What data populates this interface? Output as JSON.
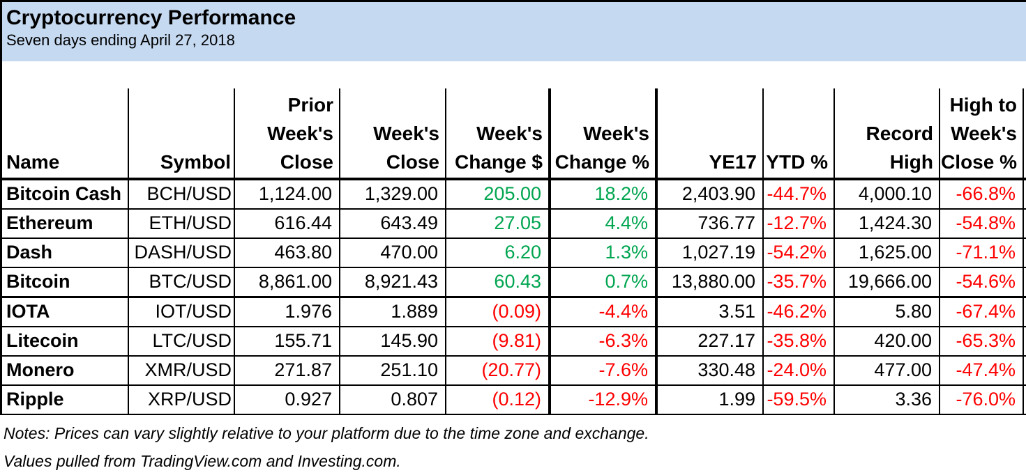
{
  "banner": {
    "title": "Cryptocurrency Performance",
    "subtitle": "Seven days ending April 27, 2018"
  },
  "table": {
    "headers": [
      {
        "label": "Name"
      },
      {
        "label": "Symbol"
      },
      {
        "label": "Prior\nWeek's\nClose"
      },
      {
        "label": "Week's\nClose"
      },
      {
        "label": "Week's\nChange $"
      },
      {
        "label": "Week's\nChange %"
      },
      {
        "label": "YE17"
      },
      {
        "label": "YTD %"
      },
      {
        "label": "Record\nHigh"
      },
      {
        "label": "High to\nWeek's\nClose %"
      }
    ],
    "rows": [
      {
        "thick_bottom": false,
        "cells": [
          {
            "v": "Bitcoin Cash"
          },
          {
            "v": "BCH/USD"
          },
          {
            "v": "1,124.00"
          },
          {
            "v": "1,329.00"
          },
          {
            "v": "205.00",
            "cls": "pos"
          },
          {
            "v": "18.2%",
            "cls": "pos"
          },
          {
            "v": "2,403.90"
          },
          {
            "v": "-44.7%",
            "cls": "neg"
          },
          {
            "v": "4,000.10"
          },
          {
            "v": "-66.8%",
            "cls": "neg"
          }
        ]
      },
      {
        "thick_bottom": false,
        "cells": [
          {
            "v": "Ethereum"
          },
          {
            "v": "ETH/USD"
          },
          {
            "v": "616.44"
          },
          {
            "v": "643.49"
          },
          {
            "v": "27.05",
            "cls": "pos"
          },
          {
            "v": "4.4%",
            "cls": "pos"
          },
          {
            "v": "736.77"
          },
          {
            "v": "-12.7%",
            "cls": "neg"
          },
          {
            "v": "1,424.30"
          },
          {
            "v": "-54.8%",
            "cls": "neg"
          }
        ]
      },
      {
        "thick_bottom": false,
        "cells": [
          {
            "v": "Dash"
          },
          {
            "v": "DASH/USD"
          },
          {
            "v": "463.80"
          },
          {
            "v": "470.00"
          },
          {
            "v": "6.20",
            "cls": "pos"
          },
          {
            "v": "1.3%",
            "cls": "pos"
          },
          {
            "v": "1,027.19"
          },
          {
            "v": "-54.2%",
            "cls": "neg"
          },
          {
            "v": "1,625.00"
          },
          {
            "v": "-71.1%",
            "cls": "neg"
          }
        ]
      },
      {
        "thick_bottom": true,
        "cells": [
          {
            "v": "Bitcoin"
          },
          {
            "v": "BTC/USD"
          },
          {
            "v": "8,861.00"
          },
          {
            "v": "8,921.43"
          },
          {
            "v": "60.43",
            "cls": "pos"
          },
          {
            "v": "0.7%",
            "cls": "pos"
          },
          {
            "v": "13,880.00"
          },
          {
            "v": "-35.7%",
            "cls": "neg"
          },
          {
            "v": "19,666.00"
          },
          {
            "v": "-54.6%",
            "cls": "neg"
          }
        ]
      },
      {
        "thick_bottom": false,
        "cells": [
          {
            "v": "IOTA"
          },
          {
            "v": "IOT/USD"
          },
          {
            "v": "1.976"
          },
          {
            "v": "1.889"
          },
          {
            "v": "(0.09)",
            "cls": "neg"
          },
          {
            "v": "-4.4%",
            "cls": "neg"
          },
          {
            "v": "3.51"
          },
          {
            "v": "-46.2%",
            "cls": "neg"
          },
          {
            "v": "5.80"
          },
          {
            "v": "-67.4%",
            "cls": "neg"
          }
        ]
      },
      {
        "thick_bottom": false,
        "cells": [
          {
            "v": "Litecoin"
          },
          {
            "v": "LTC/USD"
          },
          {
            "v": "155.71"
          },
          {
            "v": "145.90"
          },
          {
            "v": "(9.81)",
            "cls": "neg"
          },
          {
            "v": "-6.3%",
            "cls": "neg"
          },
          {
            "v": "227.17"
          },
          {
            "v": "-35.8%",
            "cls": "neg"
          },
          {
            "v": "420.00"
          },
          {
            "v": "-65.3%",
            "cls": "neg"
          }
        ]
      },
      {
        "thick_bottom": false,
        "cells": [
          {
            "v": "Monero"
          },
          {
            "v": "XMR/USD"
          },
          {
            "v": "271.87"
          },
          {
            "v": "251.10"
          },
          {
            "v": "(20.77)",
            "cls": "neg"
          },
          {
            "v": "-7.6%",
            "cls": "neg"
          },
          {
            "v": "330.48"
          },
          {
            "v": "-24.0%",
            "cls": "neg"
          },
          {
            "v": "477.00"
          },
          {
            "v": "-47.4%",
            "cls": "neg"
          }
        ]
      },
      {
        "thick_bottom": false,
        "cells": [
          {
            "v": "Ripple"
          },
          {
            "v": "XRP/USD"
          },
          {
            "v": "0.927"
          },
          {
            "v": "0.807"
          },
          {
            "v": "(0.12)",
            "cls": "neg"
          },
          {
            "v": "-12.9%",
            "cls": "neg"
          },
          {
            "v": "1.99"
          },
          {
            "v": "-59.5%",
            "cls": "neg"
          },
          {
            "v": "3.36"
          },
          {
            "v": "-76.0%",
            "cls": "neg"
          }
        ]
      }
    ]
  },
  "notes": {
    "line1": "Notes: Prices can vary slightly relative to your platform due to the time zone and exchange.",
    "line2": "Values pulled from TradingView.com and Investing.com."
  },
  "colors": {
    "positive": "#00A550",
    "negative": "#FF0000",
    "banner_bg": "#C5D9F1",
    "border": "#000000"
  },
  "chart_data": {
    "type": "table",
    "title": "Cryptocurrency Performance",
    "subtitle": "Seven days ending April 27, 2018",
    "columns": [
      "Name",
      "Symbol",
      "Prior Week's Close",
      "Week's Close",
      "Week's Change $",
      "Week's Change %",
      "YE17",
      "YTD %",
      "Record High",
      "High to Week's Close %"
    ],
    "rows": [
      [
        "Bitcoin Cash",
        "BCH/USD",
        1124.0,
        1329.0,
        205.0,
        18.2,
        2403.9,
        -44.7,
        4000.1,
        -66.8
      ],
      [
        "Ethereum",
        "ETH/USD",
        616.44,
        643.49,
        27.05,
        4.4,
        736.77,
        -12.7,
        1424.3,
        -54.8
      ],
      [
        "Dash",
        "DASH/USD",
        463.8,
        470.0,
        6.2,
        1.3,
        1027.19,
        -54.2,
        1625.0,
        -71.1
      ],
      [
        "Bitcoin",
        "BTC/USD",
        8861.0,
        8921.43,
        60.43,
        0.7,
        13880.0,
        -35.7,
        19666.0,
        -54.6
      ],
      [
        "IOTA",
        "IOT/USD",
        1.976,
        1.889,
        -0.09,
        -4.4,
        3.51,
        -46.2,
        5.8,
        -67.4
      ],
      [
        "Litecoin",
        "LTC/USD",
        155.71,
        145.9,
        -9.81,
        -6.3,
        227.17,
        -35.8,
        420.0,
        -65.3
      ],
      [
        "Monero",
        "XMR/USD",
        271.87,
        251.1,
        -20.77,
        -7.6,
        330.48,
        -24.0,
        477.0,
        -47.4
      ],
      [
        "Ripple",
        "XRP/USD",
        0.927,
        0.807,
        -0.12,
        -12.9,
        1.99,
        -59.5,
        3.36,
        -76.0
      ]
    ],
    "notes": [
      "Notes: Prices can vary slightly relative to your platform due to the time zone and exchange.",
      "Values pulled from TradingView.com and Investing.com."
    ]
  }
}
